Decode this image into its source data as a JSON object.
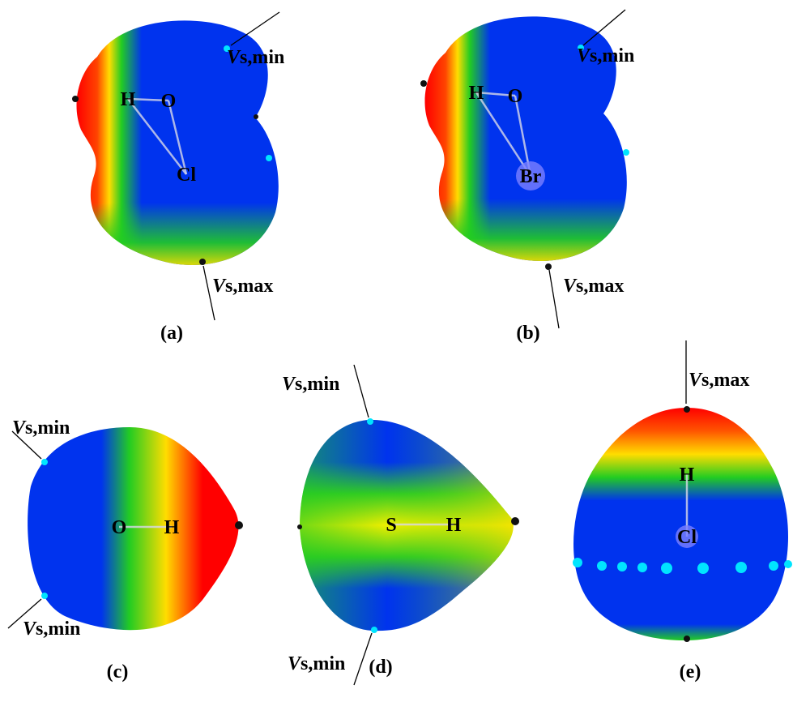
{
  "panels": [
    {
      "label": "(a)",
      "atoms": [
        "H",
        "O",
        "Cl"
      ],
      "annotations": [
        {
          "v": "V",
          "rest": "s,min"
        },
        {
          "v": "V",
          "rest": "s,max"
        }
      ]
    },
    {
      "label": "(b)",
      "atoms": [
        "H",
        "O",
        "Br"
      ],
      "annotations": [
        {
          "v": "V",
          "rest": "s,min"
        },
        {
          "v": "V",
          "rest": "s,max"
        }
      ]
    },
    {
      "label": "(c)",
      "atoms": [
        "O",
        "H"
      ],
      "annotations": [
        {
          "v": "V",
          "rest": "s,min"
        },
        {
          "v": "V",
          "rest": "s,min"
        }
      ]
    },
    {
      "label": "(d)",
      "atoms": [
        "S",
        "H"
      ],
      "annotations": [
        {
          "v": "V",
          "rest": "s,min"
        },
        {
          "v": "V",
          "rest": "s,min"
        }
      ]
    },
    {
      "label": "(e)",
      "atoms": [
        "H",
        "Cl"
      ],
      "annotations": [
        {
          "v": "V",
          "rest": "s,max"
        }
      ]
    }
  ]
}
